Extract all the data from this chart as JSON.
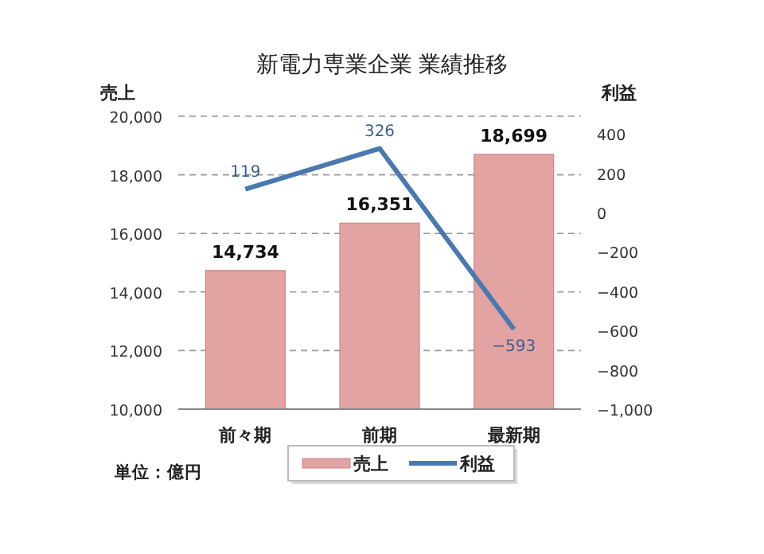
{
  "chart_data": {
    "type": "bar",
    "title": "新電力専業企業  業績推移",
    "ylabel": "売上",
    "y2label": "利益",
    "categories": [
      "前々期",
      "前期",
      "最新期"
    ],
    "series": [
      {
        "name": "売上",
        "color": "#e3a3a3",
        "values": [
          14734,
          16351,
          18699
        ],
        "value_labels": [
          "14,734",
          "16,351",
          "18,699"
        ]
      },
      {
        "name": "利益",
        "type": "line",
        "axis": "y2",
        "color": "#4a78b0",
        "values": [
          119,
          326,
          -593
        ],
        "value_labels": [
          "119",
          "326",
          "−593"
        ]
      }
    ],
    "ylim": [
      10000,
      20000
    ],
    "yticks": [
      {
        "value": 10000,
        "label": "10,000"
      },
      {
        "value": 12000,
        "label": "12,000"
      },
      {
        "value": 14000,
        "label": "14,000"
      },
      {
        "value": 16000,
        "label": "16,000"
      },
      {
        "value": 18000,
        "label": "18,000"
      },
      {
        "value": 20000,
        "label": "20,000"
      }
    ],
    "y2lim": [
      -1000,
      490
    ],
    "y2ticks": [
      {
        "value": -1000,
        "label": "−1,000"
      },
      {
        "value": -800,
        "label": "−800"
      },
      {
        "value": -600,
        "label": "−600"
      },
      {
        "value": -400,
        "label": "−400"
      },
      {
        "value": -200,
        "label": "−200"
      },
      0,
      200,
      400
    ],
    "grid": "y",
    "legend": "bottom",
    "marker": "none",
    "line_style": "solid",
    "annotations": [
      "単位：億円"
    ]
  }
}
